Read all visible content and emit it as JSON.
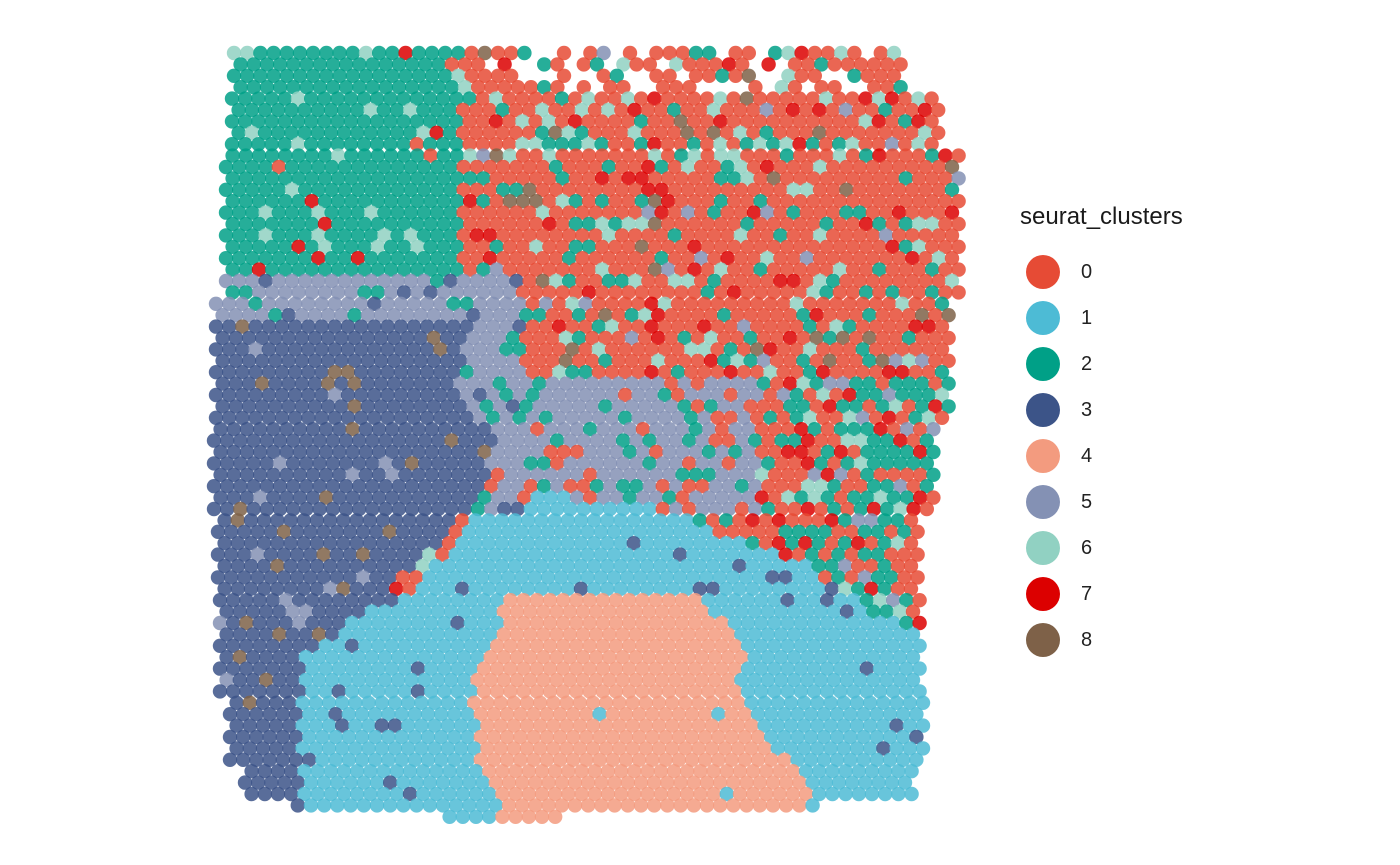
{
  "chart_data": {
    "type": "scatter",
    "title": "",
    "xlabel": "",
    "ylabel": "",
    "grid": false,
    "axes_visible": false,
    "marker": "circle",
    "legend": {
      "title": "seurat_clusters",
      "placement": "right",
      "entries": [
        {
          "label": "0",
          "color": "#E64B35"
        },
        {
          "label": "1",
          "color": "#4DBBD5"
        },
        {
          "label": "2",
          "color": "#00A087"
        },
        {
          "label": "3",
          "color": "#3C5488"
        },
        {
          "label": "4",
          "color": "#F39B7F"
        },
        {
          "label": "5",
          "color": "#8491B4"
        },
        {
          "label": "6",
          "color": "#91D1C2"
        },
        {
          "label": "7",
          "color": "#DC0000"
        },
        {
          "label": "8",
          "color": "#7E6148"
        }
      ]
    },
    "point_alpha": 0.85,
    "note_points": "spatial spots on hexagonal grid; cluster per spot estimated from image regions"
  }
}
